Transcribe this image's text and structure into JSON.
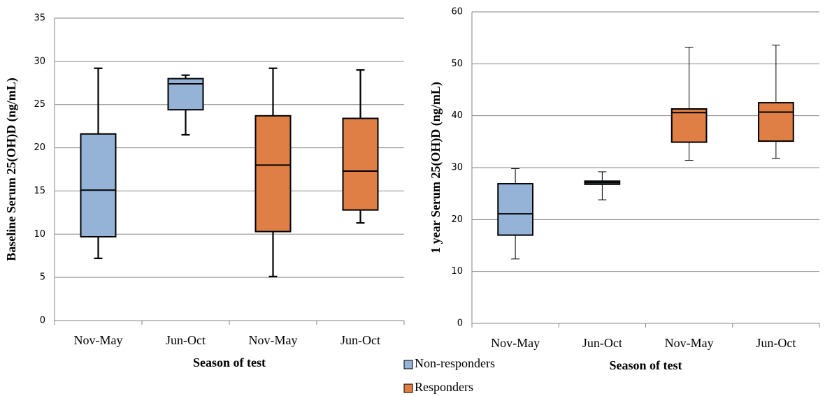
{
  "chart_data": [
    {
      "type": "box",
      "ylabel": "Baseline Serum 25(OH)D (ng/mL)",
      "xlabel": "Season of test",
      "categories": [
        "Nov-May",
        "Jun-Oct",
        "Nov-May",
        "Jun-Oct"
      ],
      "ylim": [
        0,
        35
      ],
      "yticks": [
        0,
        5,
        10,
        15,
        20,
        25,
        30,
        35
      ],
      "grid": true,
      "series": [
        {
          "color": "#95b3d7",
          "values": [
            {
              "min": 7.2,
              "q1": 9.7,
              "median": 15.1,
              "q3": 21.6,
              "max": 29.2
            },
            {
              "min": 21.5,
              "q1": 24.4,
              "median": 27.4,
              "q3": 28.0,
              "max": 28.4
            },
            null,
            null
          ]
        },
        {
          "color": "#e07f45",
          "values": [
            null,
            null,
            {
              "min": 5.1,
              "q1": 10.3,
              "median": 18.0,
              "q3": 23.7,
              "max": 29.2
            },
            {
              "min": 11.3,
              "q1": 12.8,
              "median": 17.3,
              "q3": 23.4,
              "max": 29.0
            }
          ]
        }
      ]
    },
    {
      "type": "box",
      "ylabel": "1 year  Serum 25(OH)D (ng/mL)",
      "xlabel": "Season of test",
      "categories": [
        "Nov-May",
        "Jun-Oct",
        "Nov-May",
        "Jun-Oct"
      ],
      "ylim": [
        0,
        60
      ],
      "yticks": [
        0,
        10,
        20,
        30,
        40,
        50,
        60
      ],
      "grid": true,
      "legend": "bottom-left",
      "series": [
        {
          "name": "Non-responders",
          "color": "#95b3d7",
          "values": [
            {
              "min": 12.4,
              "q1": 17.0,
              "median": 21.1,
              "q3": 26.9,
              "max": 29.8
            },
            {
              "min": 23.8,
              "q1": 26.8,
              "median": 27.1,
              "q3": 27.4,
              "max": 29.2
            },
            null,
            null
          ]
        },
        {
          "name": "Responders",
          "color": "#e07f45",
          "values": [
            null,
            null,
            {
              "min": 31.4,
              "q1": 34.9,
              "median": 40.6,
              "q3": 41.3,
              "max": 53.2
            },
            {
              "min": 31.8,
              "q1": 35.1,
              "median": 40.7,
              "q3": 42.5,
              "max": 53.6
            }
          ]
        }
      ]
    }
  ]
}
